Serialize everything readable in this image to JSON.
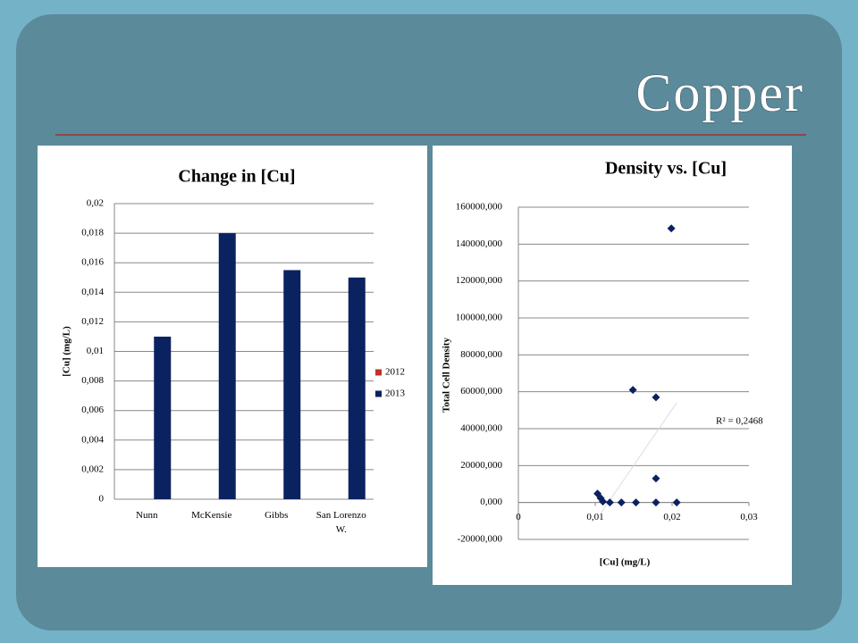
{
  "title": "Copper",
  "chart_data": [
    {
      "type": "bar",
      "title": "Change in [Cu]",
      "ylabel": "[Cu] (mg/L)",
      "categories": [
        "Nunn",
        "McKensie",
        "Gibbs",
        "San Lorenzo W."
      ],
      "series": [
        {
          "name": "2012",
          "color": "#c0302e",
          "values": [
            null,
            null,
            null,
            null
          ]
        },
        {
          "name": "2013",
          "color": "#0b2260",
          "values": [
            0.011,
            0.018,
            0.0155,
            0.015
          ]
        }
      ],
      "ylim": [
        0,
        0.02
      ],
      "yticks": [
        0,
        {
          "value": 0.002,
          "label": "0,002"
        },
        {
          "value": 0.004,
          "label": "0,004"
        },
        {
          "value": 0.006,
          "label": "0,006"
        },
        {
          "value": 0.008,
          "label": "0,008"
        },
        {
          "value": 0.01,
          "label": "0,01"
        },
        {
          "value": 0.012,
          "label": "0,012"
        },
        {
          "value": 0.014,
          "label": "0,014"
        },
        {
          "value": 0.016,
          "label": "0,016"
        },
        {
          "value": 0.018,
          "label": "0,018"
        },
        {
          "value": 0.02,
          "label": "0,02"
        }
      ],
      "grid": true,
      "legend": "right"
    },
    {
      "type": "scatter",
      "title": "Density vs. [Cu]",
      "xlabel": "[Cu] (mg/L)",
      "ylabel": "Total Cell Density",
      "color": "#0b2260",
      "x": [
        0.0103,
        0.0107,
        0.011,
        0.0119,
        0.0134,
        0.0149,
        0.0153,
        0.0179,
        0.0179,
        0.0179,
        0.0199,
        0.0206
      ],
      "values": [
        4800,
        2400,
        500,
        0,
        0,
        61000,
        0,
        57000,
        13000,
        0,
        148500,
        0
      ],
      "trendline": {
        "x": [
          0.0105,
          0.0206
        ],
        "values": [
          -7250,
          54100
        ]
      },
      "annotation": "R² = 0,2468",
      "xlim": [
        0,
        0.03
      ],
      "xticks": [
        0,
        {
          "value": 0.01,
          "label": "0,01"
        },
        {
          "value": 0.02,
          "label": "0,02"
        },
        {
          "value": 0.03,
          "label": "0,03"
        }
      ],
      "ylim": [
        -20000,
        160000
      ],
      "yticks": [
        {
          "value": -20000,
          "label": "-20000,000"
        },
        {
          "value": 0,
          "label": "0,000"
        },
        {
          "value": 20000,
          "label": "20000,000"
        },
        {
          "value": 40000,
          "label": "40000,000"
        },
        {
          "value": 60000,
          "label": "60000,000"
        },
        {
          "value": 80000,
          "label": "80000,000"
        },
        {
          "value": 100000,
          "label": "100000,000"
        },
        {
          "value": 120000,
          "label": "120000,000"
        },
        {
          "value": 140000,
          "label": "140000,000"
        },
        {
          "value": 160000,
          "label": "160000,000"
        }
      ],
      "grid": true
    }
  ]
}
